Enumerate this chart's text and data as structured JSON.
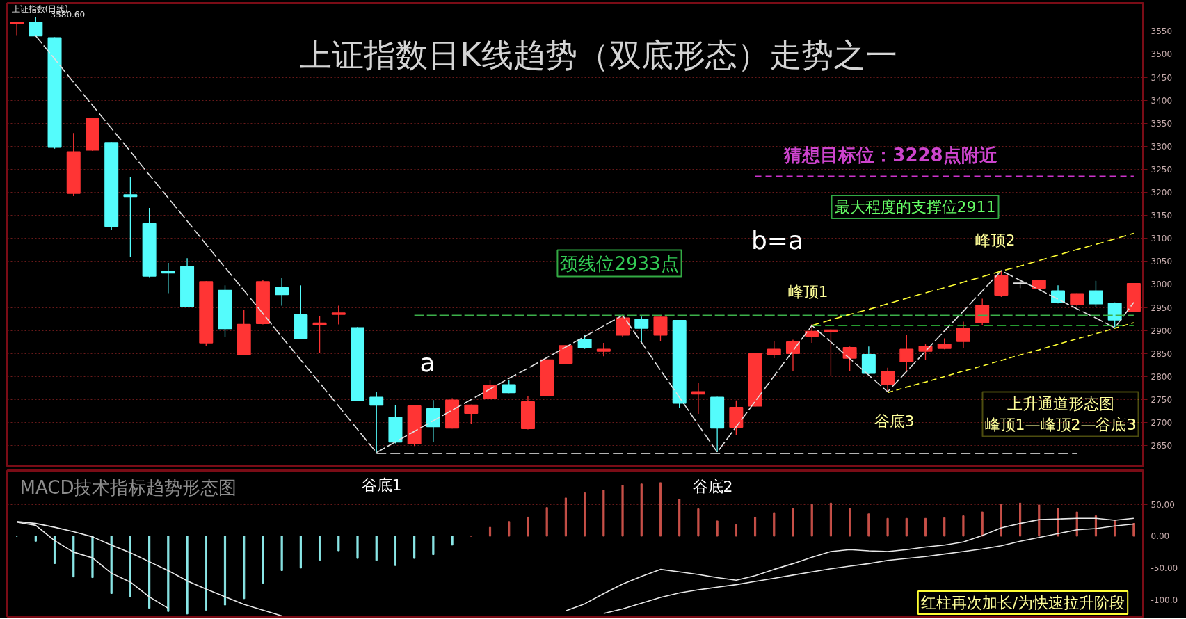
{
  "chart_data": [
    {
      "type": "candlestick",
      "title": "上证指数日K线趋势（双底形态）走势之一",
      "categories": [
        null,
        null,
        null,
        null,
        null,
        null,
        null,
        null,
        null,
        null,
        null,
        null,
        null,
        null,
        null,
        null,
        null,
        null,
        null,
        null,
        null,
        null,
        null,
        null,
        null,
        null,
        null,
        null,
        null,
        null,
        null,
        null,
        null,
        null,
        null,
        null,
        null,
        null,
        null,
        null,
        null,
        null,
        null,
        null,
        null,
        null,
        null,
        null,
        null,
        null,
        null,
        null,
        null,
        null,
        null,
        null,
        null,
        null,
        null,
        null
      ],
      "ohlc": [
        [
          3567,
          3571,
          3540,
          3570
        ],
        [
          3569,
          3580.6,
          3539,
          3540
        ],
        [
          3536,
          3537,
          3295,
          3298
        ],
        [
          3198,
          3329,
          3192,
          3288
        ],
        [
          3292,
          3362,
          3290,
          3361
        ],
        [
          3308,
          3309,
          3118,
          3126
        ],
        [
          3195,
          3234,
          3060,
          3191
        ],
        [
          3132,
          3166,
          3016,
          3018
        ],
        [
          3028,
          3047,
          2981,
          3025
        ],
        [
          3039,
          3057,
          2950,
          2952
        ],
        [
          2873,
          3007,
          2867,
          3006
        ],
        [
          2987,
          2998,
          2886,
          2904
        ],
        [
          2848,
          2944,
          2847,
          2913
        ],
        [
          2915,
          3010,
          2913,
          3006
        ],
        [
          2993,
          3014,
          2954,
          2978
        ],
        [
          2934,
          2998,
          2882,
          2883
        ],
        [
          2912,
          2931,
          2852,
          2916
        ],
        [
          2935,
          2954,
          2913,
          2938
        ],
        [
          2906,
          2908,
          2747,
          2749
        ],
        [
          2755,
          2767,
          2635,
          2738
        ],
        [
          2712,
          2738,
          2655,
          2658
        ],
        [
          2654,
          2738,
          2649,
          2736
        ],
        [
          2730,
          2749,
          2658,
          2691
        ],
        [
          2688,
          2753,
          2687,
          2749
        ],
        [
          2720,
          2739,
          2697,
          2738
        ],
        [
          2753,
          2792,
          2752,
          2780
        ],
        [
          2782,
          2793,
          2764,
          2765
        ],
        [
          2687,
          2757,
          2685,
          2745
        ],
        [
          2759,
          2837,
          2757,
          2836
        ],
        [
          2829,
          2868,
          2827,
          2867
        ],
        [
          2881,
          2890,
          2860,
          2862
        ],
        [
          2855,
          2873,
          2844,
          2859
        ],
        [
          2890,
          2933,
          2886,
          2927
        ],
        [
          2925,
          2930,
          2873,
          2905
        ],
        [
          2890,
          2930,
          2877,
          2929
        ],
        [
          2922,
          2923,
          2732,
          2742
        ],
        [
          2762,
          2786,
          2719,
          2767
        ],
        [
          2755,
          2756,
          2636,
          2688
        ],
        [
          2690,
          2748,
          2673,
          2733
        ],
        [
          2736,
          2851,
          2734,
          2850
        ],
        [
          2848,
          2877,
          2840,
          2859
        ],
        [
          2850,
          2880,
          2811,
          2875
        ],
        [
          2888,
          2914,
          2873,
          2898
        ],
        [
          2897,
          2903,
          2802,
          2901
        ],
        [
          2840,
          2865,
          2811,
          2863
        ],
        [
          2848,
          2865,
          2805,
          2807
        ],
        [
          2782,
          2819,
          2767,
          2811
        ],
        [
          2832,
          2890,
          2811,
          2859
        ],
        [
          2855,
          2870,
          2836,
          2865
        ],
        [
          2861,
          2883,
          2859,
          2870
        ],
        [
          2876,
          2919,
          2861,
          2905
        ],
        [
          2917,
          2969,
          2911,
          2955
        ],
        [
          2977,
          3030,
          2973,
          3019
        ],
        [
          3003,
          3011,
          2992,
          3002
        ],
        [
          2992,
          3010,
          2990,
          3009
        ],
        [
          2986,
          2998,
          2959,
          2961
        ],
        [
          2957,
          2981,
          2952,
          2980
        ],
        [
          2986,
          3008,
          2950,
          2958
        ],
        [
          2959,
          2961,
          2907,
          2923
        ],
        [
          2942,
          3003,
          2940,
          3002
        ]
      ],
      "colors": [
        "#ff3434",
        "#54fcfc",
        "#54fcfc",
        "#ff3434",
        "#ff3434",
        "#54fcfc",
        "#54fcfc",
        "#54fcfc",
        "#54fcfc",
        "#54fcfc",
        "#ff3434",
        "#54fcfc",
        "#ff3434",
        "#ff3434",
        "#54fcfc",
        "#54fcfc",
        "#ff3434",
        "#ff3434",
        "#54fcfc",
        "#54fcfc",
        "#54fcfc",
        "#ff3434",
        "#54fcfc",
        "#ff3434",
        "#ff3434",
        "#ff3434",
        "#54fcfc",
        "#ff3434",
        "#ff3434",
        "#ff3434",
        "#54fcfc",
        "#ff3434",
        "#ff3434",
        "#54fcfc",
        "#ff3434",
        "#54fcfc",
        "#ff3434",
        "#54fcfc",
        "#ff3434",
        "#ff3434",
        "#ff3434",
        "#ff3434",
        "#ff3434",
        "#ff3434",
        "#ff3434",
        "#54fcfc",
        "#ff3434",
        "#ff3434",
        "#ff3434",
        "#ff3434",
        "#ff3434",
        "#ff3434",
        "#ff3434",
        "#e0e0e0",
        "#ff3434",
        "#54fcfc",
        "#ff3434",
        "#54fcfc",
        "#54fcfc",
        "#ff3434"
      ],
      "series": [
        {
          "type": "line",
          "color": "#e0e0e0",
          "line_style": "dashed",
          "values": [
            null,
            3540,
            3490,
            3439,
            3389,
            3339,
            3289,
            3238,
            3188,
            3138,
            3087,
            3037,
            2987,
            2937,
            2886,
            2836,
            2786,
            2736,
            2685,
            2635,
            2658,
            2681,
            2704,
            2727,
            2750,
            2773,
            2796,
            2818,
            2841,
            2864,
            2887,
            2910,
            2933,
            2874,
            2814,
            2755,
            2695,
            2636,
            2691,
            2746,
            2801,
            2856,
            2911,
            2875,
            2839,
            2803,
            2767,
            2811,
            2855,
            2899,
            2942,
            2986,
            3030,
            3009,
            2989,
            2968,
            2947,
            2927,
            2906,
            2961
          ]
        },
        {
          "type": "line",
          "color": "#3cb04a",
          "line_style": "dashed",
          "values": [
            null,
            null,
            null,
            null,
            null,
            null,
            null,
            null,
            null,
            null,
            null,
            null,
            null,
            null,
            null,
            null,
            null,
            null,
            null,
            null,
            null,
            2933,
            2933,
            2933,
            2933,
            2933,
            2933,
            2933,
            2933,
            2933,
            2933,
            2933,
            2933,
            2933,
            2933,
            2933,
            2933,
            2933,
            2933,
            2933,
            2933,
            2933,
            2933,
            2933,
            2933,
            2933,
            2933,
            2933,
            2933,
            2933,
            2933,
            2933,
            2933,
            2933,
            2933,
            2933,
            2933,
            2933,
            2933,
            2933
          ]
        },
        {
          "type": "line",
          "color": "#33d040",
          "line_style": "dashed",
          "values": [
            null,
            null,
            null,
            null,
            null,
            null,
            null,
            null,
            null,
            null,
            null,
            null,
            null,
            null,
            null,
            null,
            null,
            null,
            null,
            null,
            null,
            null,
            null,
            null,
            null,
            null,
            null,
            null,
            null,
            null,
            null,
            null,
            null,
            null,
            null,
            null,
            null,
            null,
            null,
            null,
            null,
            null,
            2911,
            2911,
            2911,
            2911,
            2911,
            2911,
            2911,
            2911,
            2911,
            2911,
            2911,
            2911,
            2911,
            2911,
            2911,
            2911,
            2911,
            2911
          ]
        },
        {
          "type": "line",
          "color": "#f0f0f0",
          "line_style": "dashed",
          "values": [
            null,
            null,
            null,
            null,
            null,
            null,
            null,
            null,
            null,
            null,
            null,
            null,
            null,
            null,
            null,
            null,
            null,
            null,
            null,
            2633,
            2633,
            2633,
            2633,
            2633,
            2633,
            2633,
            2633,
            2633,
            2633,
            2633,
            2633,
            2633,
            2633,
            2633,
            2633,
            2633,
            2633,
            2633,
            2633,
            2633,
            2633,
            2633,
            2633,
            2633,
            2633,
            2633,
            2633,
            2633,
            2633,
            2633,
            2633,
            2633,
            2633,
            2633,
            2633,
            2633,
            2633,
            null,
            null,
            null
          ]
        },
        {
          "type": "line",
          "color": "#cc33cc",
          "line_style": "dashed",
          "values": [
            null,
            null,
            null,
            null,
            null,
            null,
            null,
            null,
            null,
            null,
            null,
            null,
            null,
            null,
            null,
            null,
            null,
            null,
            null,
            null,
            null,
            null,
            null,
            null,
            null,
            null,
            null,
            null,
            null,
            null,
            null,
            null,
            null,
            null,
            null,
            null,
            null,
            null,
            null,
            3235,
            3235,
            3235,
            3235,
            3235,
            3235,
            3235,
            3235,
            3235,
            3235,
            3235,
            3235,
            3235,
            3235,
            3235,
            3235,
            3235,
            3235,
            3235,
            3235,
            3235
          ]
        },
        {
          "type": "line",
          "color": "#ffff33",
          "line_style": "dashed",
          "values": [
            null,
            null,
            null,
            null,
            null,
            null,
            null,
            null,
            null,
            null,
            null,
            null,
            null,
            null,
            null,
            null,
            null,
            null,
            null,
            null,
            null,
            null,
            null,
            null,
            null,
            null,
            null,
            null,
            null,
            null,
            null,
            null,
            null,
            null,
            null,
            null,
            null,
            null,
            null,
            null,
            null,
            null,
            2911,
            2923,
            2935,
            2946,
            2958,
            2970,
            2982,
            2993,
            3005,
            3017,
            3029,
            3040,
            3052,
            3064,
            3076,
            3087,
            3099,
            3111
          ]
        },
        {
          "type": "line",
          "color": "#ffff33",
          "line_style": "dashed",
          "values": [
            null,
            null,
            null,
            null,
            null,
            null,
            null,
            null,
            null,
            null,
            null,
            null,
            null,
            null,
            null,
            null,
            null,
            null,
            null,
            null,
            null,
            null,
            null,
            null,
            null,
            null,
            null,
            null,
            null,
            null,
            null,
            null,
            null,
            null,
            null,
            null,
            null,
            null,
            null,
            null,
            null,
            null,
            null,
            null,
            null,
            null,
            2765,
            2777,
            2788,
            2800,
            2812,
            2823,
            2835,
            2847,
            2858,
            2870,
            2882,
            2893,
            2905,
            2917
          ]
        }
      ],
      "ylim": [
        2605,
        3611
      ],
      "yticks": [
        2650,
        2700,
        2750,
        2800,
        2850,
        2900,
        2950,
        3000,
        3050,
        3100,
        3150,
        3200,
        3250,
        3300,
        3350,
        3400,
        3450,
        3500,
        3550
      ],
      "grid": "y",
      "tick_labels": "y",
      "annotations": [
        "上证指数(日线)",
        "3580.60",
        "颈线位2933点",
        "a",
        "b=a",
        "峰顶1",
        "峰顶2",
        "谷底3",
        "最大程度的支撑位2911",
        "猜想目标位：3228点附近",
        "上升通道形态图",
        "峰顶1—峰顶2—谷底3"
      ]
    },
    {
      "type": "bar",
      "title": "MACD技术指标趋势形态图",
      "categories": [
        null,
        null,
        null,
        null,
        null,
        null,
        null,
        null,
        null,
        null,
        null,
        null,
        null,
        null,
        null,
        null,
        null,
        null,
        null,
        null,
        null,
        null,
        null,
        null,
        null,
        null,
        null,
        null,
        null,
        null,
        null,
        null,
        null,
        null,
        null,
        null,
        null,
        null,
        null,
        null,
        null,
        null,
        null,
        null,
        null,
        null,
        null,
        null,
        null,
        null,
        null,
        null,
        null,
        null,
        null,
        null,
        null,
        null,
        null,
        null
      ],
      "values": [
        0,
        -8,
        -43,
        -64,
        -65,
        -90,
        -95,
        -113,
        -118,
        -122,
        -116,
        -108,
        -98,
        -74,
        -54,
        -50,
        -38,
        -23,
        -35,
        -38,
        -46,
        -35,
        -29,
        -14,
        0,
        14,
        23,
        30,
        45,
        60,
        68,
        72,
        80,
        82,
        84,
        58,
        43,
        24,
        18,
        30,
        37,
        43,
        50,
        52,
        44,
        35,
        28,
        28,
        28,
        29,
        32,
        38,
        50,
        52,
        49,
        44,
        38,
        32,
        25,
        20
      ],
      "colors": [
        "#8ae6e6",
        "#8ae6e6",
        "#8ae6e6",
        "#8ae6e6",
        "#8ae6e6",
        "#8ae6e6",
        "#8ae6e6",
        "#8ae6e6",
        "#8ae6e6",
        "#8ae6e6",
        "#8ae6e6",
        "#8ae6e6",
        "#8ae6e6",
        "#8ae6e6",
        "#8ae6e6",
        "#8ae6e6",
        "#8ae6e6",
        "#8ae6e6",
        "#8ae6e6",
        "#8ae6e6",
        "#8ae6e6",
        "#8ae6e6",
        "#8ae6e6",
        "#8ae6e6",
        "#c85048",
        "#c85048",
        "#c85048",
        "#c85048",
        "#c85048",
        "#c85048",
        "#c85048",
        "#c85048",
        "#c85048",
        "#c85048",
        "#c85048",
        "#c85048",
        "#c85048",
        "#c85048",
        "#c85048",
        "#c85048",
        "#c85048",
        "#c85048",
        "#c85048",
        "#c85048",
        "#c85048",
        "#c85048",
        "#c85048",
        "#c85048",
        "#c85048",
        "#c85048",
        "#c85048",
        "#c85048",
        "#c85048",
        "#c85048",
        "#c85048",
        "#c85048",
        "#c85048",
        "#c85048",
        "#c85048",
        "#c85048"
      ],
      "series": [
        {
          "type": "line",
          "color": "#e8e8e8",
          "values": [
            22,
            17,
            -7,
            -25,
            -34,
            -58,
            -72,
            -95,
            -113,
            null,
            null,
            null,
            null,
            null,
            null,
            null,
            null,
            null,
            null,
            null,
            null,
            null,
            null,
            null,
            null,
            null,
            null,
            null,
            null,
            -117,
            -106,
            -90,
            -75,
            -63,
            -52,
            -56,
            -60,
            -65,
            -69,
            -62,
            -52,
            -43,
            -33,
            -24,
            -21,
            -23,
            -24,
            -21,
            -17,
            -14,
            -9,
            1,
            13,
            20,
            26,
            27,
            28,
            28,
            25,
            28
          ]
        },
        {
          "type": "line",
          "color": "#e8e8e8",
          "values": [
            23,
            20,
            14,
            7,
            -1,
            -14,
            -26,
            -40,
            -54,
            -70,
            -83,
            -95,
            -107,
            -116,
            -125,
            null,
            null,
            null,
            null,
            null,
            null,
            null,
            null,
            null,
            null,
            null,
            null,
            null,
            null,
            null,
            null,
            -121,
            -114,
            -105,
            -96,
            -89,
            -84,
            -80,
            -76,
            -71,
            -66,
            -61,
            -56,
            -51,
            -47,
            -43,
            -38,
            -35,
            -32,
            -28,
            -24,
            -20,
            -15,
            -8,
            -2,
            4,
            10,
            12,
            16,
            19
          ]
        }
      ],
      "ylim": [
        -126,
        103
      ],
      "yticks": [
        {
          "value": 50,
          "label": "50.00"
        },
        {
          "value": 0,
          "label": "0.00"
        },
        {
          "value": -50,
          "label": "-50.00"
        },
        {
          "value": -100,
          "label": "-100.0"
        }
      ],
      "grid": "y",
      "tick_labels": "y",
      "annotations": [
        "谷底1",
        "谷底2",
        "红柱再次加长/为快速拉升阶段"
      ]
    }
  ]
}
